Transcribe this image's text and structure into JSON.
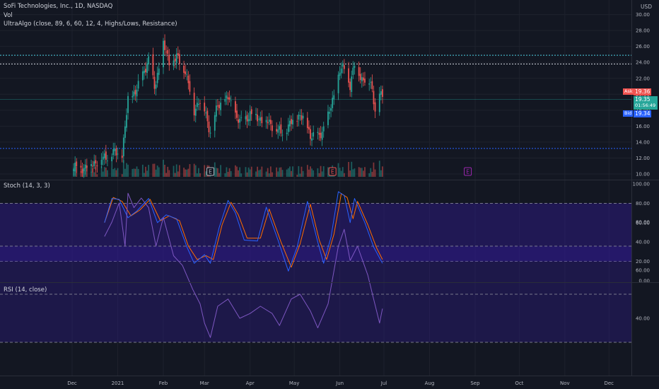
{
  "legend": {
    "symbol": "SoFi Technologies, Inc., 1D, NASDAQ",
    "vol": "Vol",
    "indicator": "UltraAlgo (close, 89, 6, 60, 12, 4, Highs/Lows, Resistance)",
    "stoch": "Stoch (14, 3, 3)",
    "rsi": "RSI (14, close)"
  },
  "currency": "USD",
  "quote": {
    "ask_label": "Ask",
    "ask": "19.36",
    "last": "19.35",
    "countdown": "01:56:49",
    "bid_label": "Bid",
    "bid": "19.34"
  },
  "colors": {
    "background": "#131722",
    "up": "#26a69a",
    "down": "#ef5350",
    "stoch_k": "#2962ff",
    "stoch_d": "#ff6d00",
    "rsi": "#7e57c2",
    "band": "#311b92",
    "resistance": "#4dd0e1",
    "support": "#2962ff",
    "earnings_purple": "#9c27b0",
    "earnings_red": "#ef5350",
    "earnings_grey": "#b2b5be"
  },
  "chart_data": [
    {
      "type": "candlestick",
      "title": "SoFi Technologies, Inc., 1D, NASDAQ",
      "x_ticks": [
        "Dec",
        "2021",
        "Feb",
        "Mar",
        "Apr",
        "May",
        "Jun",
        "Jul",
        "Aug",
        "Sep",
        "Oct",
        "Nov",
        "Dec"
      ],
      "y_ticks": [
        "10.00",
        "12.00",
        "14.00",
        "16.00",
        "18.00",
        "20.00",
        "22.00",
        "24.00",
        "26.00",
        "28.00",
        "30.00"
      ],
      "ylim": [
        9.75,
        30.5
      ],
      "horizontal_lines": [
        {
          "label": "resistance",
          "value": 24.9,
          "color": "#4dd0e1"
        },
        {
          "label": "resistance",
          "value": 23.8,
          "color": "#d1d4dc"
        },
        {
          "label": "support",
          "value": 13.2,
          "color": "#2962ff"
        }
      ],
      "close_series_points": [
        [
          "2020-12-01",
          10.7
        ],
        [
          "2020-12-10",
          10.9
        ],
        [
          "2020-12-20",
          11.8
        ],
        [
          "2020-12-29",
          12.6
        ],
        [
          "2021-01-04",
          12.5
        ],
        [
          "2021-01-08",
          19.2
        ],
        [
          "2021-01-15",
          21.0
        ],
        [
          "2021-01-22",
          24.5
        ],
        [
          "2021-01-26",
          20.7
        ],
        [
          "2021-02-01",
          26.2
        ],
        [
          "2021-02-05",
          24.0
        ],
        [
          "2021-02-10",
          24.6
        ],
        [
          "2021-02-16",
          23.0
        ],
        [
          "2021-02-22",
          17.9
        ],
        [
          "2021-02-25",
          19.3
        ],
        [
          "2021-03-01",
          18.0
        ],
        [
          "2021-03-05",
          15.3
        ],
        [
          "2021-03-10",
          18.5
        ],
        [
          "2021-03-17",
          19.5
        ],
        [
          "2021-03-25",
          16.4
        ],
        [
          "2021-04-01",
          17.5
        ],
        [
          "2021-04-08",
          17.0
        ],
        [
          "2021-04-15",
          16.3
        ],
        [
          "2021-04-22",
          15.1
        ],
        [
          "2021-04-28",
          16.2
        ],
        [
          "2021-05-05",
          17.5
        ],
        [
          "2021-05-12",
          15.0
        ],
        [
          "2021-05-18",
          14.6
        ],
        [
          "2021-05-25",
          17.6
        ],
        [
          "2021-06-01",
          23.0
        ],
        [
          "2021-06-04",
          23.2
        ],
        [
          "2021-06-08",
          21.2
        ],
        [
          "2021-06-11",
          23.7
        ],
        [
          "2021-06-16",
          22.0
        ],
        [
          "2021-06-22",
          21.5
        ],
        [
          "2021-06-25",
          18.3
        ],
        [
          "2021-06-28",
          20.2
        ],
        [
          "2021-06-30",
          19.35
        ]
      ],
      "earnings_markers": [
        {
          "label": "E",
          "date": "2021-03-05",
          "color": "#b2b5be"
        },
        {
          "label": "E",
          "date": "2021-05-27",
          "color": "#ef5350"
        },
        {
          "label": "E",
          "date": "2021-08-27",
          "color": "#9c27b0"
        }
      ]
    },
    {
      "type": "line",
      "title": "Stoch (14, 3, 3)",
      "y_ticks": [
        "0.00",
        "20.00",
        "40.00",
        "60.00",
        "80.00",
        "100.00"
      ],
      "ylim": [
        0,
        100
      ],
      "bands": [
        80,
        20
      ],
      "series": [
        {
          "name": "K",
          "color": "#2962ff",
          "points": [
            [
              "2020-12-23",
              60
            ],
            [
              "2020-12-28",
              85
            ],
            [
              "2021-01-02",
              84
            ],
            [
              "2021-01-08",
              65
            ],
            [
              "2021-01-14",
              72
            ],
            [
              "2021-01-22",
              85
            ],
            [
              "2021-01-28",
              60
            ],
            [
              "2021-02-03",
              68
            ],
            [
              "2021-02-10",
              64
            ],
            [
              "2021-02-17",
              35
            ],
            [
              "2021-02-22",
              18
            ],
            [
              "2021-03-01",
              27
            ],
            [
              "2021-03-05",
              18
            ],
            [
              "2021-03-11",
              55
            ],
            [
              "2021-03-17",
              83
            ],
            [
              "2021-03-22",
              70
            ],
            [
              "2021-03-28",
              42
            ],
            [
              "2021-04-06",
              41
            ],
            [
              "2021-04-12",
              76
            ],
            [
              "2021-04-20",
              42
            ],
            [
              "2021-04-27",
              10
            ],
            [
              "2021-05-03",
              35
            ],
            [
              "2021-05-10",
              82
            ],
            [
              "2021-05-17",
              40
            ],
            [
              "2021-05-21",
              18
            ],
            [
              "2021-05-26",
              45
            ],
            [
              "2021-05-31",
              92
            ],
            [
              "2021-06-04",
              88
            ],
            [
              "2021-06-08",
              60
            ],
            [
              "2021-06-11",
              85
            ],
            [
              "2021-06-18",
              60
            ],
            [
              "2021-06-24",
              35
            ],
            [
              "2021-06-30",
              18
            ]
          ]
        },
        {
          "name": "D",
          "color": "#ff6d00",
          "points": [
            [
              "2020-12-23",
              60
            ],
            [
              "2020-12-29",
              86
            ],
            [
              "2021-01-04",
              82
            ],
            [
              "2021-01-10",
              67
            ],
            [
              "2021-01-16",
              73
            ],
            [
              "2021-01-23",
              84
            ],
            [
              "2021-01-30",
              62
            ],
            [
              "2021-02-05",
              67
            ],
            [
              "2021-02-12",
              62
            ],
            [
              "2021-02-18",
              36
            ],
            [
              "2021-02-24",
              22
            ],
            [
              "2021-03-02",
              26
            ],
            [
              "2021-03-07",
              22
            ],
            [
              "2021-03-13",
              58
            ],
            [
              "2021-03-19",
              81
            ],
            [
              "2021-03-24",
              68
            ],
            [
              "2021-03-30",
              44
            ],
            [
              "2021-04-08",
              44
            ],
            [
              "2021-04-14",
              74
            ],
            [
              "2021-04-22",
              40
            ],
            [
              "2021-04-29",
              14
            ],
            [
              "2021-05-05",
              38
            ],
            [
              "2021-05-12",
              79
            ],
            [
              "2021-05-18",
              42
            ],
            [
              "2021-05-23",
              22
            ],
            [
              "2021-05-28",
              48
            ],
            [
              "2021-06-02",
              90
            ],
            [
              "2021-06-06",
              86
            ],
            [
              "2021-06-10",
              64
            ],
            [
              "2021-06-13",
              82
            ],
            [
              "2021-06-20",
              58
            ],
            [
              "2021-06-26",
              34
            ],
            [
              "2021-06-30",
              22
            ]
          ]
        }
      ]
    },
    {
      "type": "line",
      "title": "RSI (14, close)",
      "y_ticks": [
        "40.00",
        "60.00",
        "80.00"
      ],
      "ylim": [
        26,
        96
      ],
      "bands": [
        70,
        50,
        30
      ],
      "series": [
        {
          "name": "RSI",
          "color": "#7e57c2",
          "points": [
            [
              "2020-12-23",
              74
            ],
            [
              "2020-12-28",
              80
            ],
            [
              "2021-01-02",
              88
            ],
            [
              "2021-01-06",
              70
            ],
            [
              "2021-01-08",
              92
            ],
            [
              "2021-01-12",
              86
            ],
            [
              "2021-01-17",
              90
            ],
            [
              "2021-01-22",
              86
            ],
            [
              "2021-01-27",
              70
            ],
            [
              "2021-02-01",
              82
            ],
            [
              "2021-02-08",
              66
            ],
            [
              "2021-02-14",
              62
            ],
            [
              "2021-02-21",
              52
            ],
            [
              "2021-02-26",
              46
            ],
            [
              "2021-03-01",
              38
            ],
            [
              "2021-03-05",
              32
            ],
            [
              "2021-03-10",
              45
            ],
            [
              "2021-03-17",
              48
            ],
            [
              "2021-03-25",
              40
            ],
            [
              "2021-04-01",
              42
            ],
            [
              "2021-04-08",
              45
            ],
            [
              "2021-04-16",
              42
            ],
            [
              "2021-04-21",
              37
            ],
            [
              "2021-04-29",
              48
            ],
            [
              "2021-05-05",
              50
            ],
            [
              "2021-05-12",
              43
            ],
            [
              "2021-05-17",
              36
            ],
            [
              "2021-05-24",
              46
            ],
            [
              "2021-05-31",
              70
            ],
            [
              "2021-06-04",
              77
            ],
            [
              "2021-06-08",
              64
            ],
            [
              "2021-06-13",
              70
            ],
            [
              "2021-06-20",
              58
            ],
            [
              "2021-06-24",
              48
            ],
            [
              "2021-06-28",
              38
            ],
            [
              "2021-06-30",
              44
            ]
          ]
        }
      ]
    }
  ]
}
